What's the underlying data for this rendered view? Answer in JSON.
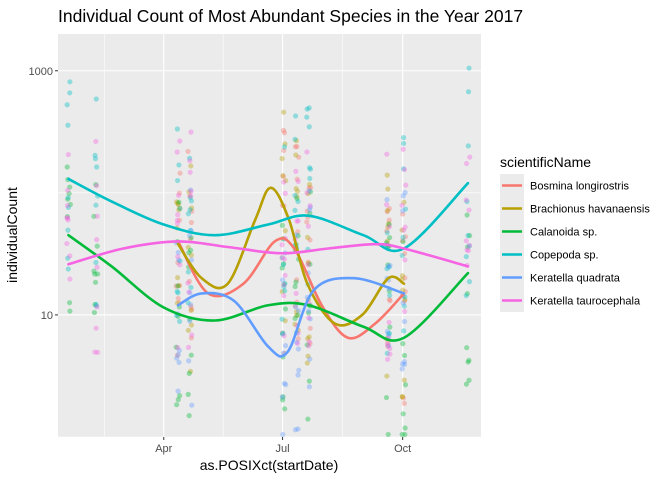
{
  "chart_data": {
    "type": "scatter",
    "title": "Individual Count of Most Abundant Species in the Year 2017",
    "xlabel": "as.POSIXct(startDate)",
    "ylabel": "individualCount",
    "y_scale": "log10",
    "x_tick_labels": [
      {
        "label": "Apr",
        "date": "2017-04-01"
      },
      {
        "label": "Jul",
        "date": "2017-07-01"
      },
      {
        "label": "Oct",
        "date": "2017-10-01"
      }
    ],
    "y_tick_labels": [
      {
        "label": "10",
        "value": 10
      },
      {
        "label": "1000",
        "value": 1000
      }
    ],
    "xlim": [
      "2017-01-10",
      "2017-11-30"
    ],
    "ylim": [
      1,
      2000
    ],
    "grid": true,
    "panel_background": "#ebebeb",
    "legend": {
      "title": "scientificName",
      "position": "right",
      "entries": [
        "Bosmina longirostris",
        "Brachionus havanaensis",
        "Calanoida sp.",
        "Copepoda sp.",
        "Keratella quadrata",
        "Keratella taurocephala"
      ]
    },
    "colors": {
      "Bosmina longirostris": "#F8766D",
      "Brachionus havanaensis": "#B79F00",
      "Calanoida sp.": "#00BA38",
      "Copepoda sp.": "#00BFC4",
      "Keratella quadrata": "#619CFF",
      "Keratella taurocephala": "#F564E3"
    },
    "sampling_dates": [
      "2017-01-18",
      "2017-02-08",
      "2017-04-12",
      "2017-04-21",
      "2017-07-02",
      "2017-07-12",
      "2017-07-21",
      "2017-09-20",
      "2017-10-02",
      "2017-11-20"
    ],
    "points_note": "semi-transparent points at each sampling date, one per observation",
    "series": [
      {
        "name": "Bosmina longirostris",
        "x": [
          "2017-04-12",
          "2017-05-05",
          "2017-06-01",
          "2017-06-25",
          "2017-07-10",
          "2017-07-31",
          "2017-08-20",
          "2017-09-10",
          "2017-10-02"
        ],
        "y": [
          40,
          15,
          18,
          40,
          35,
          12,
          6.5,
          8.5,
          15
        ]
      },
      {
        "name": "Brachionus havanaensis",
        "x": [
          "2017-04-12",
          "2017-04-30",
          "2017-05-20",
          "2017-06-10",
          "2017-06-22",
          "2017-07-06",
          "2017-07-20",
          "2017-08-10",
          "2017-08-31",
          "2017-09-20",
          "2017-10-02"
        ],
        "y": [
          38,
          20,
          18,
          60,
          110,
          60,
          18,
          8.5,
          10,
          20,
          18
        ]
      },
      {
        "name": "Calanoida sp.",
        "x": [
          "2017-01-18",
          "2017-02-20",
          "2017-04-01",
          "2017-05-10",
          "2017-06-20",
          "2017-07-21",
          "2017-09-01",
          "2017-10-02",
          "2017-11-20"
        ],
        "y": [
          45,
          25,
          11.5,
          9,
          12,
          12,
          8,
          6.5,
          22
        ]
      },
      {
        "name": "Copepoda sp.",
        "x": [
          "2017-01-18",
          "2017-02-20",
          "2017-04-01",
          "2017-05-10",
          "2017-06-20",
          "2017-07-21",
          "2017-09-01",
          "2017-10-02",
          "2017-11-20"
        ],
        "y": [
          130,
          85,
          55,
          45,
          55,
          65,
          45,
          35,
          120
        ]
      },
      {
        "name": "Keratella quadrata",
        "x": [
          "2017-04-12",
          "2017-04-30",
          "2017-05-25",
          "2017-06-20",
          "2017-07-05",
          "2017-07-25",
          "2017-08-25",
          "2017-10-02"
        ],
        "y": [
          12,
          15,
          13,
          5.5,
          5,
          16,
          20,
          15
        ]
      },
      {
        "name": "Keratella taurocephala",
        "x": [
          "2017-01-18",
          "2017-03-01",
          "2017-04-12",
          "2017-05-20",
          "2017-06-30",
          "2017-08-05",
          "2017-09-10",
          "2017-10-02",
          "2017-11-20"
        ],
        "y": [
          26,
          35,
          40,
          36,
          32,
          35,
          38,
          35,
          25
        ]
      }
    ]
  }
}
